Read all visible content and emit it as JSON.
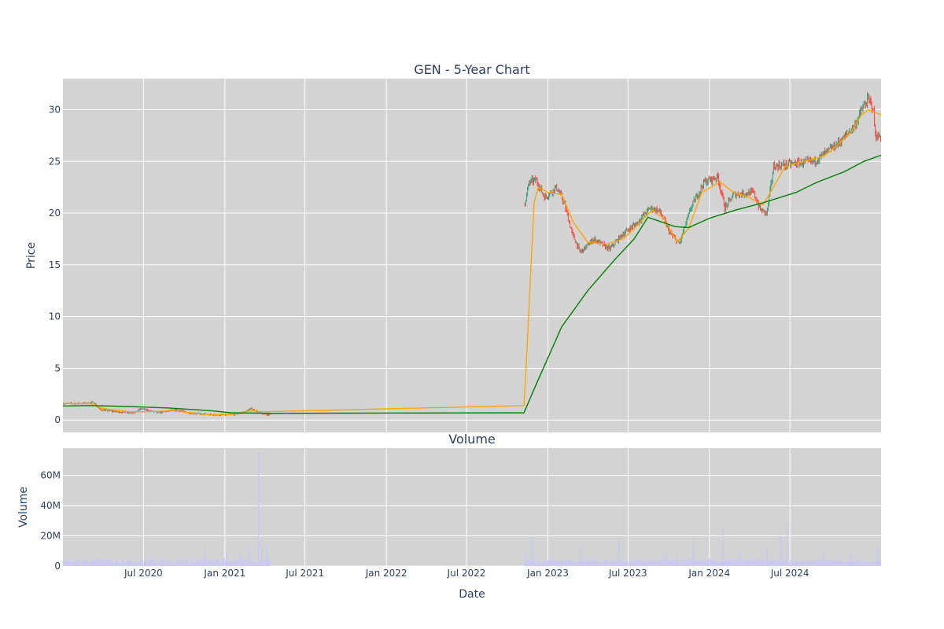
{
  "chart_data": [
    {
      "type": "candlestick",
      "title": "GEN - 5-Year Chart",
      "ylabel": "Price",
      "ylim": [
        -1.2,
        33
      ],
      "y_ticks": [
        0,
        5,
        10,
        15,
        20,
        25,
        30
      ],
      "colors": {
        "up": "#3d9970",
        "down": "#ff4136",
        "ma_short": "#ffa500",
        "ma_long": "#008000",
        "grid": "#ffffff",
        "plot_bg": "#d3d3d3"
      },
      "price_path": [
        [
          "2020-01-02",
          1.6
        ],
        [
          "2020-02-15",
          1.6
        ],
        [
          "2020-03-10",
          1.7
        ],
        [
          "2020-03-25",
          1.0
        ],
        [
          "2020-05-01",
          0.8
        ],
        [
          "2020-06-10",
          0.7
        ],
        [
          "2020-06-25",
          1.1
        ],
        [
          "2020-08-01",
          0.7
        ],
        [
          "2020-09-15",
          1.0
        ],
        [
          "2020-10-10",
          0.7
        ],
        [
          "2020-12-01",
          0.5
        ],
        [
          "2021-01-15",
          0.5
        ],
        [
          "2021-02-10",
          0.7
        ],
        [
          "2021-03-01",
          1.1
        ],
        [
          "2021-03-25",
          0.6
        ],
        [
          "2021-04-15",
          0.5
        ]
      ],
      "price_path_2": [
        [
          "2022-11-10",
          21.0
        ],
        [
          "2022-11-20",
          23.0
        ],
        [
          "2022-12-05",
          23.2
        ],
        [
          "2022-12-25",
          21.5
        ],
        [
          "2023-01-20",
          22.5
        ],
        [
          "2023-02-05",
          21.2
        ],
        [
          "2023-02-25",
          18.0
        ],
        [
          "2023-03-15",
          16.2
        ],
        [
          "2023-04-15",
          17.5
        ],
        [
          "2023-05-20",
          16.5
        ],
        [
          "2023-06-20",
          18.0
        ],
        [
          "2023-07-20",
          19.0
        ],
        [
          "2023-08-20",
          20.5
        ],
        [
          "2023-09-10",
          20.2
        ],
        [
          "2023-10-05",
          18.0
        ],
        [
          "2023-10-25",
          17.0
        ],
        [
          "2023-11-20",
          20.5
        ],
        [
          "2023-12-20",
          23.0
        ],
        [
          "2024-01-20",
          23.5
        ],
        [
          "2024-02-05",
          20.5
        ],
        [
          "2024-02-25",
          21.8
        ],
        [
          "2024-04-10",
          22.0
        ],
        [
          "2024-04-25",
          20.3
        ],
        [
          "2024-05-10",
          20.0
        ],
        [
          "2024-05-25",
          24.5
        ],
        [
          "2024-07-10",
          24.8
        ],
        [
          "2024-08-25",
          25.0
        ],
        [
          "2024-09-25",
          26.0
        ],
        [
          "2024-10-25",
          27.0
        ],
        [
          "2024-11-25",
          28.5
        ],
        [
          "2024-12-10",
          30.0
        ],
        [
          "2024-12-25",
          31.0
        ],
        [
          "2025-01-05",
          30.2
        ],
        [
          "2025-01-10",
          27.5
        ],
        [
          "2025-01-23",
          27.3
        ]
      ],
      "ma_short": [
        [
          "2020-01-01",
          1.6
        ],
        [
          "2020-03-01",
          1.6
        ],
        [
          "2020-04-01",
          1.1
        ],
        [
          "2020-06-01",
          0.8
        ],
        [
          "2020-07-01",
          0.8
        ],
        [
          "2020-09-01",
          0.9
        ],
        [
          "2020-12-01",
          0.5
        ],
        [
          "2021-01-15",
          0.55
        ],
        [
          "2021-03-01",
          0.9
        ],
        [
          "2021-04-01",
          0.8
        ],
        [
          "2022-11-08",
          1.4
        ],
        [
          "2022-11-15",
          7.0
        ],
        [
          "2022-11-25",
          16.0
        ],
        [
          "2022-12-01",
          21.0
        ],
        [
          "2022-12-10",
          22.5
        ],
        [
          "2023-01-01",
          22.0
        ],
        [
          "2023-02-01",
          21.8
        ],
        [
          "2023-03-01",
          19.0
        ],
        [
          "2023-04-01",
          17.2
        ],
        [
          "2023-05-15",
          17.0
        ],
        [
          "2023-06-20",
          17.5
        ],
        [
          "2023-07-15",
          18.5
        ],
        [
          "2023-08-25",
          20.3
        ],
        [
          "2023-09-20",
          19.5
        ],
        [
          "2023-10-20",
          17.2
        ],
        [
          "2023-11-15",
          18.5
        ],
        [
          "2023-12-15",
          22.0
        ],
        [
          "2024-01-25",
          23.0
        ],
        [
          "2024-02-25",
          22.0
        ],
        [
          "2024-04-01",
          21.5
        ],
        [
          "2024-05-01",
          20.8
        ],
        [
          "2024-05-25",
          22.5
        ],
        [
          "2024-06-20",
          24.5
        ],
        [
          "2024-08-01",
          25.0
        ],
        [
          "2024-09-15",
          25.5
        ],
        [
          "2024-10-15",
          26.5
        ],
        [
          "2024-11-15",
          27.8
        ],
        [
          "2024-12-10",
          29.5
        ],
        [
          "2024-12-25",
          30.0
        ],
        [
          "2025-01-23",
          29.5
        ]
      ],
      "ma_long": [
        [
          "2020-01-01",
          1.35
        ],
        [
          "2020-03-01",
          1.4
        ],
        [
          "2020-06-01",
          1.3
        ],
        [
          "2020-09-01",
          1.15
        ],
        [
          "2020-12-01",
          0.9
        ],
        [
          "2021-01-15",
          0.7
        ],
        [
          "2021-04-15",
          0.65
        ],
        [
          "2022-11-08",
          0.7
        ],
        [
          "2022-12-01",
          3.0
        ],
        [
          "2023-01-01",
          6.0
        ],
        [
          "2023-02-01",
          9.0
        ],
        [
          "2023-04-01",
          12.5
        ],
        [
          "2023-06-01",
          15.5
        ],
        [
          "2023-07-15",
          17.5
        ],
        [
          "2023-08-15",
          19.6
        ],
        [
          "2023-10-15",
          18.7
        ],
        [
          "2023-11-15",
          18.6
        ],
        [
          "2024-01-01",
          19.5
        ],
        [
          "2024-03-01",
          20.3
        ],
        [
          "2024-05-01",
          21.0
        ],
        [
          "2024-07-15",
          22.0
        ],
        [
          "2024-09-01",
          23.0
        ],
        [
          "2024-11-01",
          24.0
        ],
        [
          "2024-12-15",
          25.0
        ],
        [
          "2025-01-23",
          25.6
        ]
      ]
    },
    {
      "type": "bar",
      "title": "Volume",
      "xlabel": "Date",
      "ylabel": "Volume",
      "ylim": [
        0,
        78000000
      ],
      "y_ticks": [
        0,
        20000000,
        40000000,
        60000000
      ],
      "y_tick_labels": [
        "0",
        "20M",
        "40M",
        "60M"
      ],
      "x_ticks": [
        "2020-07-01",
        "2021-01-01",
        "2021-07-01",
        "2022-01-01",
        "2022-07-01",
        "2023-01-01",
        "2023-07-01",
        "2024-01-01",
        "2024-07-01"
      ],
      "x_tick_labels": [
        "Jul 2020",
        "Jan 2021",
        "Jul 2021",
        "Jan 2022",
        "Jul 2022",
        "Jan 2023",
        "Jul 2023",
        "Jan 2024",
        "Jul 2024"
      ],
      "x_range": [
        "2020-01-01",
        "2025-01-23"
      ],
      "colors": {
        "bar": "#c8c8f5"
      },
      "volume_peaks": [
        [
          "2020-03-15",
          4000000
        ],
        [
          "2020-05-15",
          5000000
        ],
        [
          "2020-09-20",
          4000000
        ],
        [
          "2020-11-15",
          11000000
        ],
        [
          "2021-01-05",
          8000000
        ],
        [
          "2021-02-05",
          8000000
        ],
        [
          "2021-02-25",
          13000000
        ],
        [
          "2021-03-18",
          76000000
        ],
        [
          "2021-03-25",
          12000000
        ],
        [
          "2021-04-05",
          15000000
        ],
        [
          "2022-11-10",
          9000000
        ],
        [
          "2022-11-25",
          20000000
        ],
        [
          "2023-03-15",
          14000000
        ],
        [
          "2023-06-10",
          17000000
        ],
        [
          "2023-09-25",
          8000000
        ],
        [
          "2023-11-25",
          17000000
        ],
        [
          "2024-02-01",
          25000000
        ],
        [
          "2024-03-10",
          9000000
        ],
        [
          "2024-05-10",
          12000000
        ],
        [
          "2024-06-10",
          20000000
        ],
        [
          "2024-06-25",
          28000000
        ],
        [
          "2024-09-15",
          11000000
        ],
        [
          "2024-11-15",
          10000000
        ],
        [
          "2025-01-15",
          13000000
        ]
      ]
    }
  ]
}
